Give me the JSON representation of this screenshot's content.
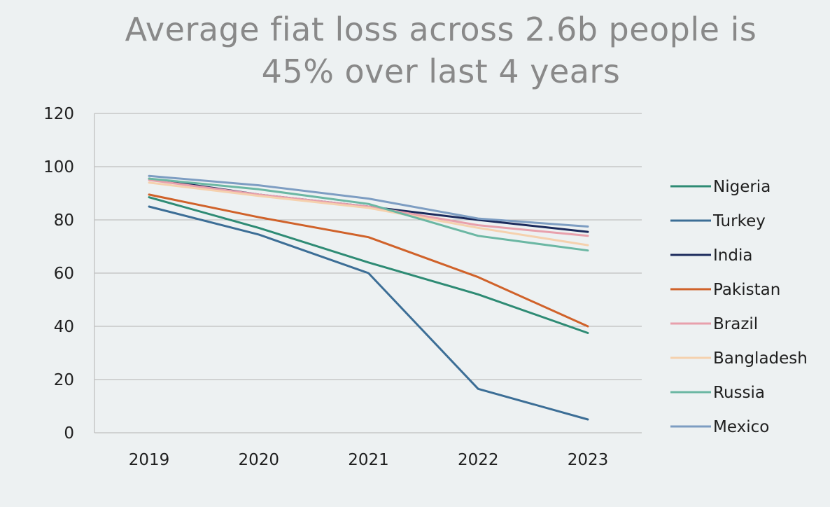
{
  "chart_data": {
    "type": "line",
    "title": "Average fiat loss across 2.6b people is\n45% over last 4 years",
    "xlabel": "",
    "ylabel": "",
    "x": [
      "2019",
      "2020",
      "2021",
      "2022",
      "2023"
    ],
    "ylim": [
      0,
      120
    ],
    "yticks": [
      "0",
      "20",
      "40",
      "60",
      "80",
      "100",
      "120"
    ],
    "grid": true,
    "legend_position": "right",
    "series": [
      {
        "name": "Nigeria",
        "color": "#2e8b74",
        "values": [
          88.5,
          77,
          64,
          52,
          37.5
        ]
      },
      {
        "name": "Turkey",
        "color": "#3c6e96",
        "values": [
          85,
          74.5,
          60,
          16.5,
          5
        ]
      },
      {
        "name": "India",
        "color": "#1b2a5c",
        "values": [
          95.5,
          89.5,
          85,
          80,
          75.5
        ]
      },
      {
        "name": "Pakistan",
        "color": "#d0622a",
        "values": [
          89.5,
          81,
          73.5,
          58.5,
          40
        ]
      },
      {
        "name": "Brazil",
        "color": "#e8a0ac",
        "values": [
          95,
          89.5,
          85,
          78,
          74
        ]
      },
      {
        "name": "Bangladesh",
        "color": "#f5d1ae",
        "values": [
          94,
          89,
          84.5,
          77,
          70.5
        ]
      },
      {
        "name": "Russia",
        "color": "#6bb7a3",
        "values": [
          95.5,
          91.5,
          86,
          74,
          68.5
        ]
      },
      {
        "name": "Mexico",
        "color": "#7d9dc2",
        "values": [
          96.5,
          93,
          88,
          80.5,
          77.5
        ]
      }
    ]
  }
}
